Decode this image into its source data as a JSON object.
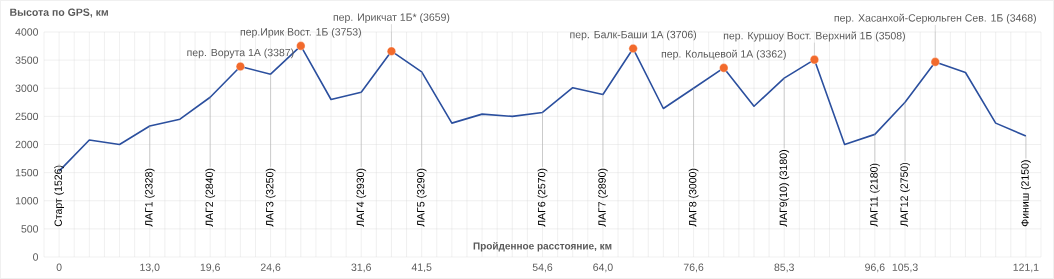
{
  "chart_data": {
    "type": "line",
    "title": "Высота по GPS, км",
    "xlabel": "Пройденное расстояние, км",
    "categories": [
      "0",
      null,
      null,
      "13,0",
      null,
      "19,6",
      null,
      "24,6",
      null,
      null,
      "31,6",
      null,
      "41,5",
      null,
      null,
      null,
      "54,6",
      null,
      "64,0",
      null,
      null,
      "76,6",
      null,
      null,
      "85,3",
      null,
      null,
      "96,6",
      "105,3",
      null,
      null,
      null,
      "121,1"
    ],
    "series": [
      {
        "color": "#2b4f9e",
        "values": [
          1526,
          2080,
          2000,
          2328,
          2450,
          2840,
          3387,
          3250,
          3753,
          2800,
          2930,
          3659,
          3290,
          2380,
          2540,
          2500,
          2570,
          3010,
          2890,
          3706,
          2640,
          3000,
          3362,
          2680,
          3180,
          3508,
          2000,
          2180,
          2750,
          3468,
          3280,
          2380,
          2150
        ]
      },
      {
        "type": "scatter",
        "color": "#f26a2c",
        "marker": "circle",
        "values": [
          null,
          null,
          null,
          null,
          null,
          null,
          3387,
          null,
          3753,
          null,
          null,
          3659,
          null,
          null,
          null,
          null,
          null,
          null,
          null,
          3706,
          null,
          null,
          3362,
          null,
          null,
          3508,
          null,
          null,
          null,
          3468,
          null,
          null,
          null
        ]
      }
    ],
    "ylim": [
      0,
      4000
    ],
    "yticks": [
      0,
      500,
      1000,
      1500,
      2000,
      2500,
      3000,
      3500,
      4000
    ],
    "grid": true,
    "annotations": [
      {
        "text": "Старт (1526)",
        "y": 1526
      },
      {
        "text": "ЛАГ1 (2328)",
        "y": 2328
      },
      {
        "text": "ЛАГ2 (2840)",
        "y": 2840
      },
      {
        "text": "пер. Ворута 1А (3387)",
        "y": 3387
      },
      {
        "text": "ЛАГ3 (3250)",
        "y": 3250
      },
      {
        "text": "пер.Ирик Вост. 1Б (3753)",
        "y": 3753
      },
      {
        "text": "ЛАГ4 (2930)",
        "y": 2930
      },
      {
        "text": "пер. Ирикчат 1Б* (3659)",
        "y": 3659
      },
      {
        "text": "ЛАГ5 (3290)",
        "y": 3290
      },
      {
        "text": "ЛАГ6 (2570)",
        "y": 2570
      },
      {
        "text": "ЛАГ7 (2890)",
        "y": 2890
      },
      {
        "text": "пер. Балк-Баши 1А (3706)",
        "y": 3706
      },
      {
        "text": "ЛАГ8 (3000)",
        "y": 3000
      },
      {
        "text": "пер. Кольцевой 1А (3362)",
        "y": 3362
      },
      {
        "text": "ЛАГ9(10) (3180)",
        "y": 3180
      },
      {
        "text": "пер. Куршоу Вост. Верхний 1Б (3508)",
        "y": 3508
      },
      {
        "text": "ЛАГ11 (2180)",
        "y": 2180
      },
      {
        "text": "ЛАГ12 (2750)",
        "y": 2750
      },
      {
        "text": "пер. Хасанхой-Серюльген Сев. 1Б (3468)",
        "y": 3468
      },
      {
        "text": "Финиш (2150)",
        "y": 2150
      }
    ]
  }
}
